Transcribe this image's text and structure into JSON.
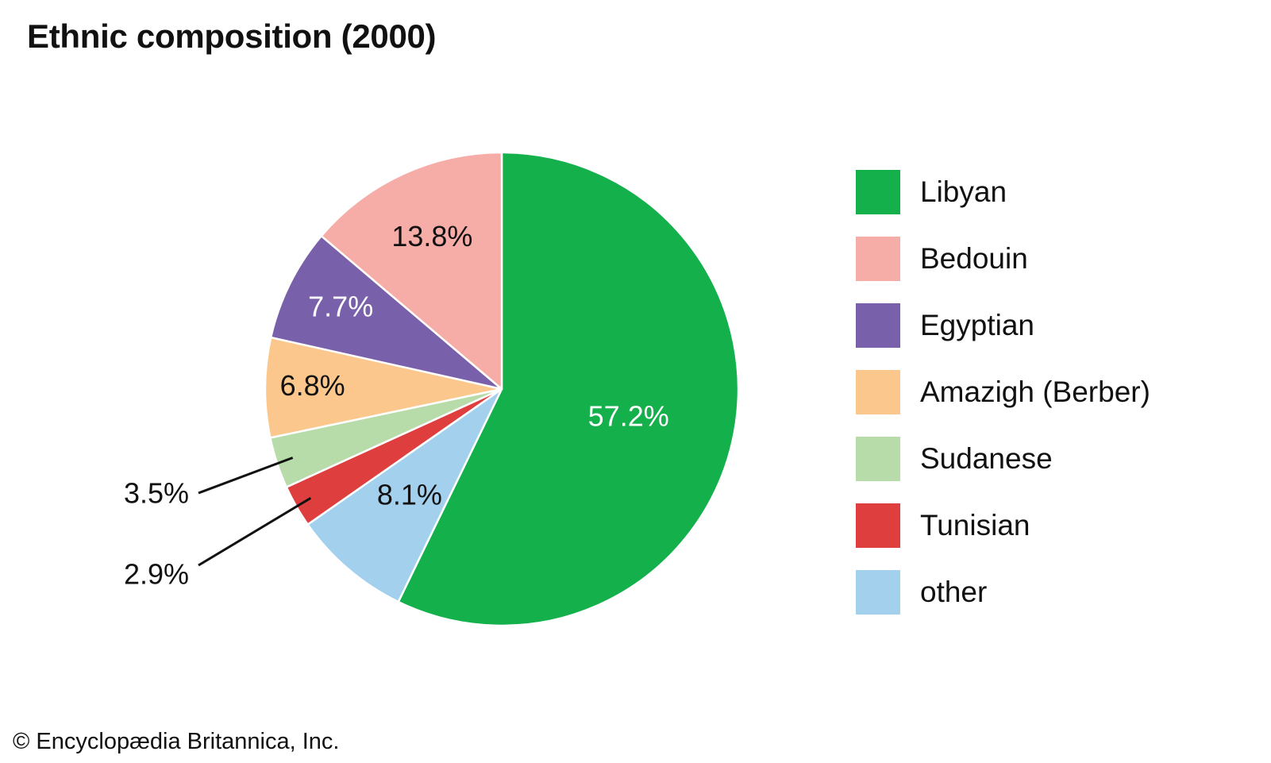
{
  "chart_data": {
    "type": "pie",
    "title": "Ethnic composition (2000)",
    "unit": "%",
    "slices": [
      {
        "name": "Libyan",
        "value": 57.2,
        "label": "57.2%",
        "color": "#13b04b",
        "label_color": "#ffffff"
      },
      {
        "name": "other",
        "value": 8.1,
        "label": "8.1%",
        "color": "#a2d0ed",
        "label_color": "#111111"
      },
      {
        "name": "Tunisian",
        "value": 2.9,
        "label": "2.9%",
        "color": "#de3f3e",
        "label_color": "#111111"
      },
      {
        "name": "Sudanese",
        "value": 3.5,
        "label": "3.5%",
        "color": "#b8dca9",
        "label_color": "#111111"
      },
      {
        "name": "Amazigh (Berber)",
        "value": 6.8,
        "label": "6.8%",
        "color": "#fbc78c",
        "label_color": "#111111"
      },
      {
        "name": "Egyptian",
        "value": 7.7,
        "label": "7.7%",
        "color": "#7960aa",
        "label_color": "#ffffff"
      },
      {
        "name": "Bedouin",
        "value": 13.8,
        "label": "13.8%",
        "color": "#f6aca7",
        "label_color": "#111111"
      }
    ],
    "legend": [
      {
        "name": "Libyan",
        "color": "#13b04b"
      },
      {
        "name": "Bedouin",
        "color": "#f6aca7"
      },
      {
        "name": "Egyptian",
        "color": "#7960aa"
      },
      {
        "name": "Amazigh (Berber)",
        "color": "#fbc78c"
      },
      {
        "name": "Sudanese",
        "color": "#b8dca9"
      },
      {
        "name": "Tunisian",
        "color": "#de3f3e"
      },
      {
        "name": "other",
        "color": "#a2d0ed"
      }
    ],
    "legend_position": "right"
  },
  "credit": "© Encyclopædia Britannica, Inc."
}
